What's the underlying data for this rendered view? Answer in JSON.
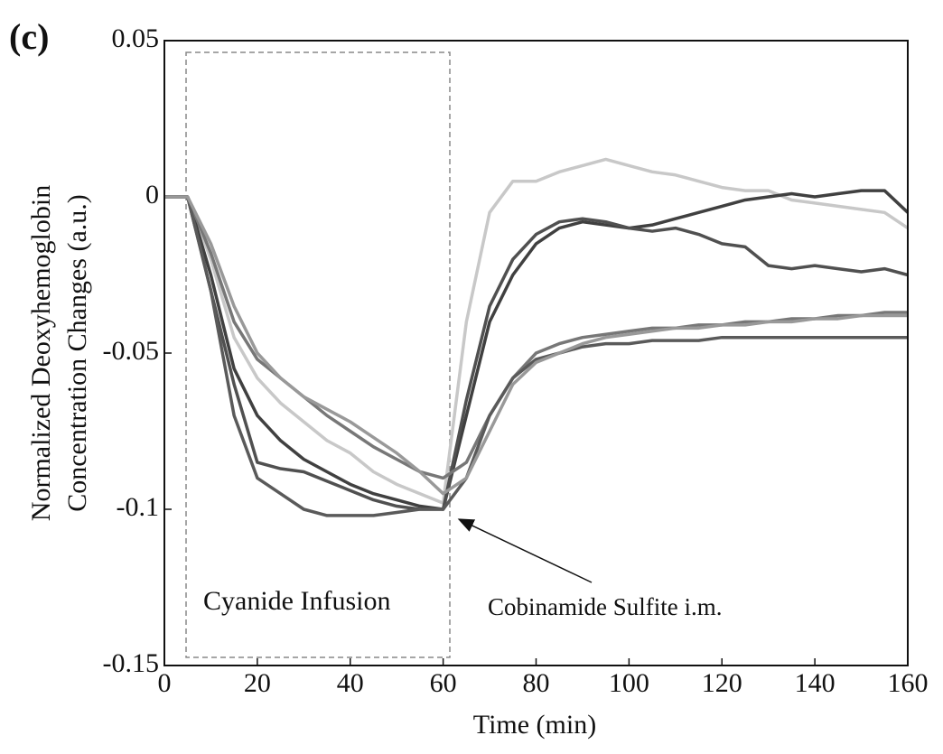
{
  "chart_data": {
    "type": "line",
    "panel_label": "(c)",
    "xlabel": "Time (min)",
    "ylabel": [
      "Normalized Deoxyhemoglobin",
      "Concentration Changes (a.u.)"
    ],
    "annotations": [
      "Cyanide Infusion",
      "Cobinamide Sulfite i.m."
    ],
    "xlim": [
      0,
      160
    ],
    "ylim": [
      -0.15,
      0.05
    ],
    "xticks": [
      0,
      20,
      40,
      60,
      80,
      100,
      120,
      140,
      160
    ],
    "yticks": [
      -0.15,
      -0.1,
      -0.05,
      0,
      0.05
    ],
    "x": [
      0,
      5,
      10,
      15,
      20,
      25,
      30,
      35,
      40,
      45,
      50,
      55,
      60,
      65,
      70,
      75,
      80,
      85,
      90,
      95,
      100,
      105,
      110,
      115,
      120,
      125,
      130,
      135,
      140,
      145,
      150,
      155,
      160
    ],
    "series": [
      {
        "color": "#c8c8c8",
        "values": [
          0,
          0,
          -0.02,
          -0.045,
          -0.058,
          -0.066,
          -0.072,
          -0.078,
          -0.082,
          -0.088,
          -0.092,
          -0.095,
          -0.098,
          -0.04,
          -0.005,
          0.005,
          0.005,
          0.008,
          0.01,
          0.012,
          0.01,
          0.008,
          0.007,
          0.005,
          0.003,
          0.002,
          0.002,
          -0.001,
          -0.002,
          -0.003,
          -0.004,
          -0.005,
          -0.01
        ]
      },
      {
        "color": "#404040",
        "values": [
          0,
          0,
          -0.025,
          -0.055,
          -0.07,
          -0.078,
          -0.084,
          -0.088,
          -0.092,
          -0.095,
          -0.097,
          -0.099,
          -0.1,
          -0.07,
          -0.04,
          -0.025,
          -0.015,
          -0.01,
          -0.008,
          -0.009,
          -0.01,
          -0.009,
          -0.007,
          -0.005,
          -0.003,
          -0.001,
          0,
          0.001,
          0,
          0.001,
          0.002,
          0.002,
          -0.005
        ]
      },
      {
        "color": "#505050",
        "values": [
          0,
          0,
          -0.03,
          -0.06,
          -0.085,
          -0.087,
          -0.088,
          -0.091,
          -0.094,
          -0.097,
          -0.099,
          -0.1,
          -0.1,
          -0.065,
          -0.035,
          -0.02,
          -0.012,
          -0.008,
          -0.007,
          -0.008,
          -0.01,
          -0.011,
          -0.01,
          -0.012,
          -0.015,
          -0.016,
          -0.022,
          -0.023,
          -0.022,
          -0.023,
          -0.024,
          -0.023,
          -0.025
        ]
      },
      {
        "color": "#777777",
        "values": [
          0,
          0,
          -0.018,
          -0.04,
          -0.052,
          -0.058,
          -0.064,
          -0.07,
          -0.075,
          -0.08,
          -0.084,
          -0.088,
          -0.09,
          -0.085,
          -0.07,
          -0.058,
          -0.05,
          -0.047,
          -0.045,
          -0.044,
          -0.043,
          -0.042,
          -0.042,
          -0.041,
          -0.041,
          -0.04,
          -0.04,
          -0.039,
          -0.039,
          -0.038,
          -0.038,
          -0.037,
          -0.037
        ]
      },
      {
        "color": "#5a5a5a",
        "values": [
          0,
          0,
          -0.03,
          -0.07,
          -0.09,
          -0.095,
          -0.1,
          -0.102,
          -0.102,
          -0.102,
          -0.101,
          -0.1,
          -0.1,
          -0.09,
          -0.07,
          -0.058,
          -0.052,
          -0.05,
          -0.048,
          -0.047,
          -0.047,
          -0.046,
          -0.046,
          -0.046,
          -0.045,
          -0.045,
          -0.045,
          -0.045,
          -0.045,
          -0.045,
          -0.045,
          -0.045,
          -0.045
        ]
      },
      {
        "color": "#999999",
        "values": [
          0,
          0,
          -0.015,
          -0.035,
          -0.05,
          -0.058,
          -0.064,
          -0.068,
          -0.072,
          -0.077,
          -0.082,
          -0.088,
          -0.095,
          -0.09,
          -0.075,
          -0.06,
          -0.053,
          -0.05,
          -0.047,
          -0.045,
          -0.044,
          -0.043,
          -0.042,
          -0.042,
          -0.041,
          -0.041,
          -0.04,
          -0.04,
          -0.039,
          -0.039,
          -0.038,
          -0.038,
          -0.038
        ]
      }
    ]
  }
}
